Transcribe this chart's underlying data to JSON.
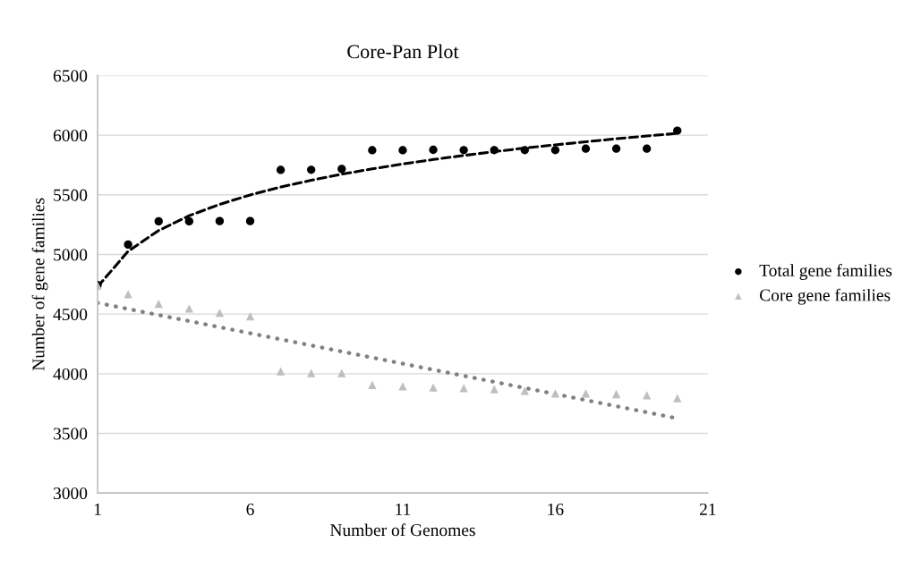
{
  "chart_data": {
    "type": "scatter",
    "title": "Core-Pan Plot",
    "xlabel": "Number of Genomes",
    "ylabel": "Number of gene families",
    "x": [
      1,
      2,
      3,
      4,
      5,
      6,
      7,
      8,
      9,
      10,
      11,
      12,
      13,
      14,
      15,
      16,
      17,
      18,
      19,
      20
    ],
    "series": [
      {
        "name": "Total gene families",
        "color": "#000000",
        "marker": "circle",
        "values": [
          4744,
          5083,
          5278,
          5278,
          5280,
          5280,
          5709,
          5710,
          5717,
          5874,
          5874,
          5877,
          5875,
          5875,
          5875,
          5875,
          5887,
          5887,
          5887,
          6038
        ]
      },
      {
        "name": "Core gene families",
        "color": "#bfbfbf",
        "marker": "triangle",
        "values": [
          4740,
          4667,
          4586,
          4547,
          4511,
          4481,
          4020,
          4005,
          4005,
          3907,
          3895,
          3885,
          3880,
          3870,
          3857,
          3835,
          3835,
          3830,
          3820,
          3795
        ]
      },
      {
        "type": "line",
        "color": "#000000",
        "line_style": "dashed",
        "x": [
          1,
          2,
          3,
          4,
          5,
          6,
          7,
          8,
          9,
          10,
          11,
          12,
          13,
          14,
          15,
          16,
          17,
          18,
          19,
          20
        ],
        "values": [
          4730,
          5027,
          5201,
          5325,
          5420,
          5499,
          5565,
          5622,
          5673,
          5718,
          5759,
          5796,
          5830,
          5862,
          5892,
          5919,
          5945,
          5970,
          5993,
          6015
        ]
      },
      {
        "type": "line",
        "color": "#808080",
        "line_style": "dotted",
        "x": [
          1,
          20
        ],
        "values": [
          4594,
          3626
        ]
      }
    ],
    "xlim": [
      1,
      21
    ],
    "xticks": [
      1,
      6,
      11,
      16,
      21
    ],
    "ylim": [
      3000,
      6500
    ],
    "yticks": [
      3000,
      3500,
      4000,
      4500,
      5000,
      5500,
      6000,
      6500
    ],
    "grid": "y",
    "legend": "right"
  }
}
